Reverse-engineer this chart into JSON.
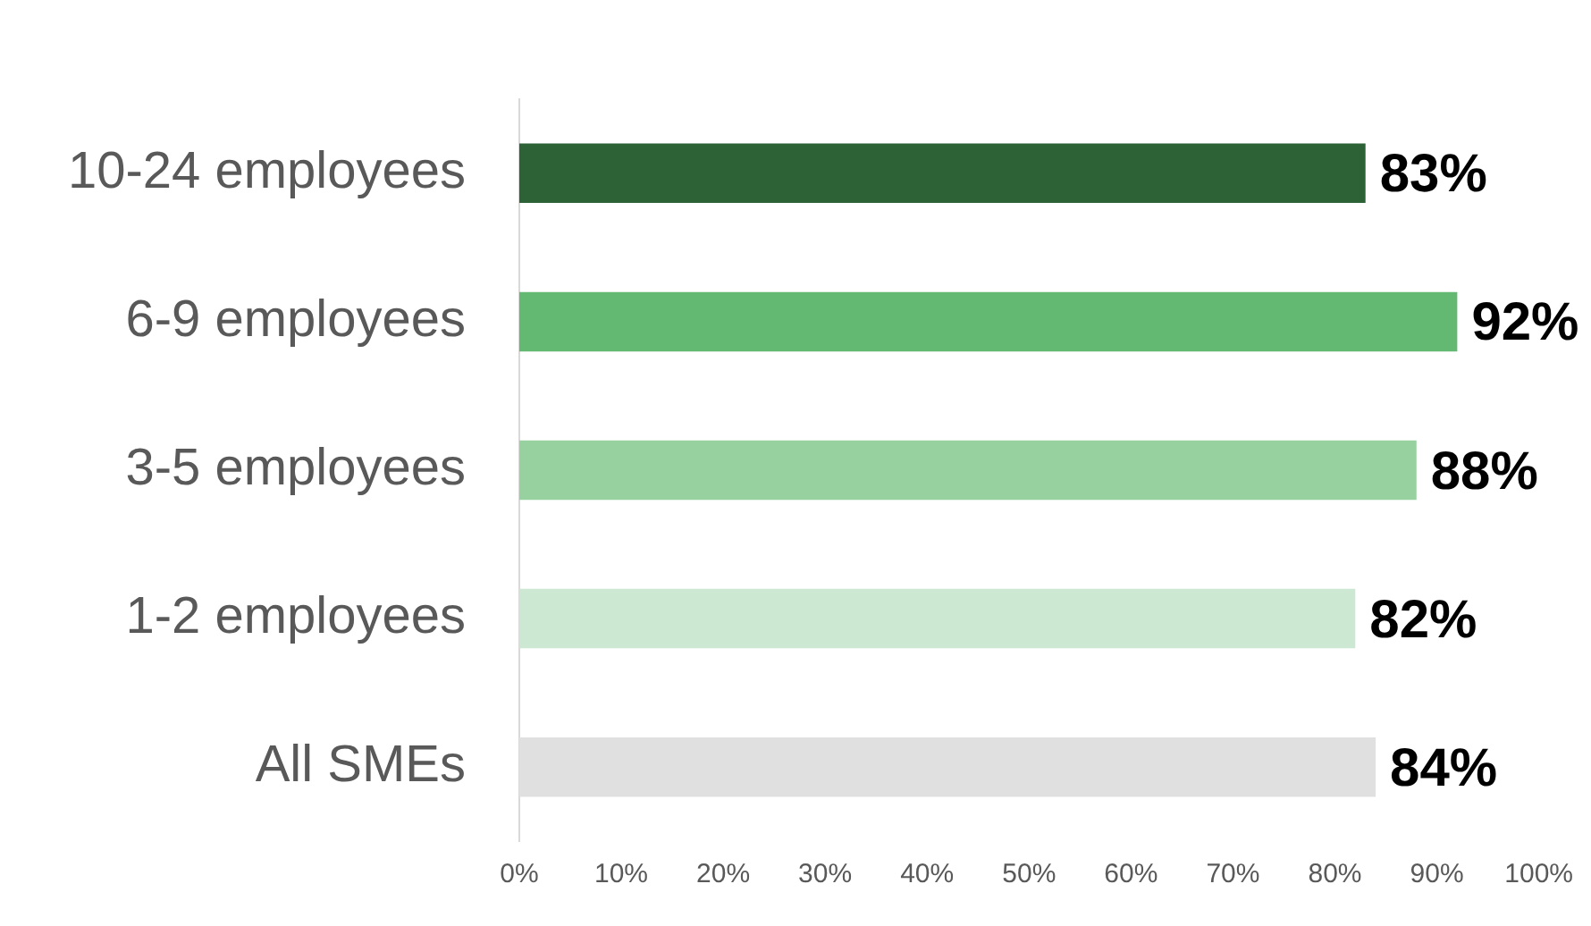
{
  "chart_data": {
    "type": "bar",
    "orientation": "horizontal",
    "categories": [
      "10-24 employees",
      "6-9 employees",
      "3-5 employees",
      "1-2 employees",
      "All SMEs"
    ],
    "values": [
      83,
      92,
      88,
      82,
      84
    ],
    "colors": [
      "#2d6236",
      "#63b972",
      "#98d1a0",
      "#cce8d2",
      "#e0e0e0"
    ],
    "value_labels": [
      "83%",
      "92%",
      "88%",
      "82%",
      "84%"
    ],
    "xlim": [
      0,
      100
    ],
    "xticks": [
      {
        "value": 0,
        "label": "0%"
      },
      {
        "value": 10,
        "label": "10%"
      },
      {
        "value": 20,
        "label": "20%"
      },
      {
        "value": 30,
        "label": "30%"
      },
      {
        "value": 40,
        "label": "40%"
      },
      {
        "value": 50,
        "label": "50%"
      },
      {
        "value": 60,
        "label": "60%"
      },
      {
        "value": 70,
        "label": "70%"
      },
      {
        "value": 80,
        "label": "80%"
      },
      {
        "value": 90,
        "label": "90%"
      },
      {
        "value": 100,
        "label": "100%"
      }
    ],
    "grid": false,
    "legend": false
  }
}
